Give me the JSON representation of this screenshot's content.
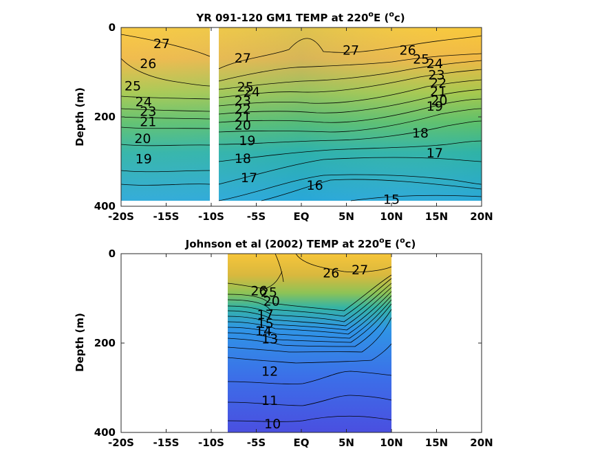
{
  "chart_data": [
    {
      "type": "heatmap",
      "title_main": "YR 091-120 GM1 TEMP at 220",
      "title_sup": "o",
      "title_tail": "E (",
      "title_sup2": "o",
      "title_end": "c)",
      "ylabel": "Depth (m)",
      "xlim": [
        -20,
        20
      ],
      "ylim": [
        400,
        0
      ],
      "x_ticks": [
        {
          "value": -20,
          "label": "-20S"
        },
        {
          "value": -15,
          "label": "-15S"
        },
        {
          "value": -10,
          "label": "-10S"
        },
        {
          "value": -5,
          "label": "-5S"
        },
        {
          "value": 0,
          "label": "EQ"
        },
        {
          "value": 5,
          "label": "5N"
        },
        {
          "value": 10,
          "label": "10N"
        },
        {
          "value": 15,
          "label": "15N"
        },
        {
          "value": 20,
          "label": "20N"
        }
      ],
      "y_ticks": [
        {
          "value": 0,
          "label": "0"
        },
        {
          "value": 200,
          "label": "200"
        },
        {
          "value": 400,
          "label": "400"
        }
      ],
      "data_extent": {
        "x": [
          -20,
          20
        ],
        "y": [
          0,
          385
        ]
      },
      "gap_x": [
        -10.5,
        -9.5
      ],
      "contour_labels": [
        {
          "x": -15.5,
          "y": 35,
          "label": "27"
        },
        {
          "x": -17.0,
          "y": 80,
          "label": "26"
        },
        {
          "x": -18.7,
          "y": 130,
          "label": "25"
        },
        {
          "x": -17.5,
          "y": 165,
          "label": "24"
        },
        {
          "x": -17.0,
          "y": 187,
          "label": "23"
        },
        {
          "x": -17.0,
          "y": 210,
          "label": "21"
        },
        {
          "x": -17.6,
          "y": 248,
          "label": "20"
        },
        {
          "x": -17.5,
          "y": 293,
          "label": "19"
        },
        {
          "x": -6.5,
          "y": 68,
          "label": "27"
        },
        {
          "x": -6.2,
          "y": 132,
          "label": "25"
        },
        {
          "x": -5.5,
          "y": 143,
          "label": "24"
        },
        {
          "x": -6.5,
          "y": 163,
          "label": "23"
        },
        {
          "x": -6.5,
          "y": 182,
          "label": "22"
        },
        {
          "x": -6.5,
          "y": 200,
          "label": "21"
        },
        {
          "x": -6.5,
          "y": 218,
          "label": "20"
        },
        {
          "x": -6.0,
          "y": 252,
          "label": "19"
        },
        {
          "x": -6.5,
          "y": 292,
          "label": "18"
        },
        {
          "x": -5.8,
          "y": 335,
          "label": "17"
        },
        {
          "x": 1.5,
          "y": 352,
          "label": "16"
        },
        {
          "x": 5.5,
          "y": 50,
          "label": "27"
        },
        {
          "x": 11.8,
          "y": 50,
          "label": "26"
        },
        {
          "x": 13.3,
          "y": 70,
          "label": "25"
        },
        {
          "x": 14.8,
          "y": 80,
          "label": "24"
        },
        {
          "x": 15.0,
          "y": 105,
          "label": "23"
        },
        {
          "x": 15.2,
          "y": 123,
          "label": "22"
        },
        {
          "x": 15.2,
          "y": 142,
          "label": "21"
        },
        {
          "x": 15.3,
          "y": 162,
          "label": "20"
        },
        {
          "x": 14.8,
          "y": 175,
          "label": "19"
        },
        {
          "x": 13.2,
          "y": 235,
          "label": "18"
        },
        {
          "x": 14.8,
          "y": 280,
          "label": "17"
        },
        {
          "x": 10.0,
          "y": 384,
          "label": "15"
        }
      ]
    },
    {
      "type": "heatmap",
      "title_main": "Johnson et al (2002) TEMP at 220",
      "title_sup": "o",
      "title_tail": "E (",
      "title_sup2": "o",
      "title_end": "c)",
      "ylabel": "Depth (m)",
      "xlim": [
        -20,
        20
      ],
      "ylim": [
        400,
        0
      ],
      "x_ticks": [
        {
          "value": -20,
          "label": "-20S"
        },
        {
          "value": -15,
          "label": "-15S"
        },
        {
          "value": -10,
          "label": "-10S"
        },
        {
          "value": -5,
          "label": "-5S"
        },
        {
          "value": 0,
          "label": "EQ"
        },
        {
          "value": 5,
          "label": "5N"
        },
        {
          "value": 10,
          "label": "10N"
        },
        {
          "value": 15,
          "label": "15N"
        },
        {
          "value": 20,
          "label": "20N"
        }
      ],
      "y_ticks": [
        {
          "value": 0,
          "label": "0"
        },
        {
          "value": 200,
          "label": "200"
        },
        {
          "value": 400,
          "label": "400"
        }
      ],
      "data_extent": {
        "x": [
          -8,
          10
        ],
        "y": [
          0,
          400
        ]
      },
      "contour_labels": [
        {
          "x": 3.3,
          "y": 42,
          "label": "26"
        },
        {
          "x": 6.5,
          "y": 35,
          "label": "27"
        },
        {
          "x": -4.7,
          "y": 82,
          "label": "26"
        },
        {
          "x": -3.6,
          "y": 85,
          "label": "25"
        },
        {
          "x": -3.3,
          "y": 105,
          "label": "20"
        },
        {
          "x": -4.0,
          "y": 135,
          "label": "17"
        },
        {
          "x": -4.0,
          "y": 155,
          "label": "15"
        },
        {
          "x": -4.2,
          "y": 172,
          "label": "14"
        },
        {
          "x": -3.5,
          "y": 190,
          "label": "13"
        },
        {
          "x": -3.5,
          "y": 262,
          "label": "12"
        },
        {
          "x": -3.5,
          "y": 328,
          "label": "11"
        },
        {
          "x": -3.2,
          "y": 380,
          "label": "10"
        }
      ]
    }
  ]
}
